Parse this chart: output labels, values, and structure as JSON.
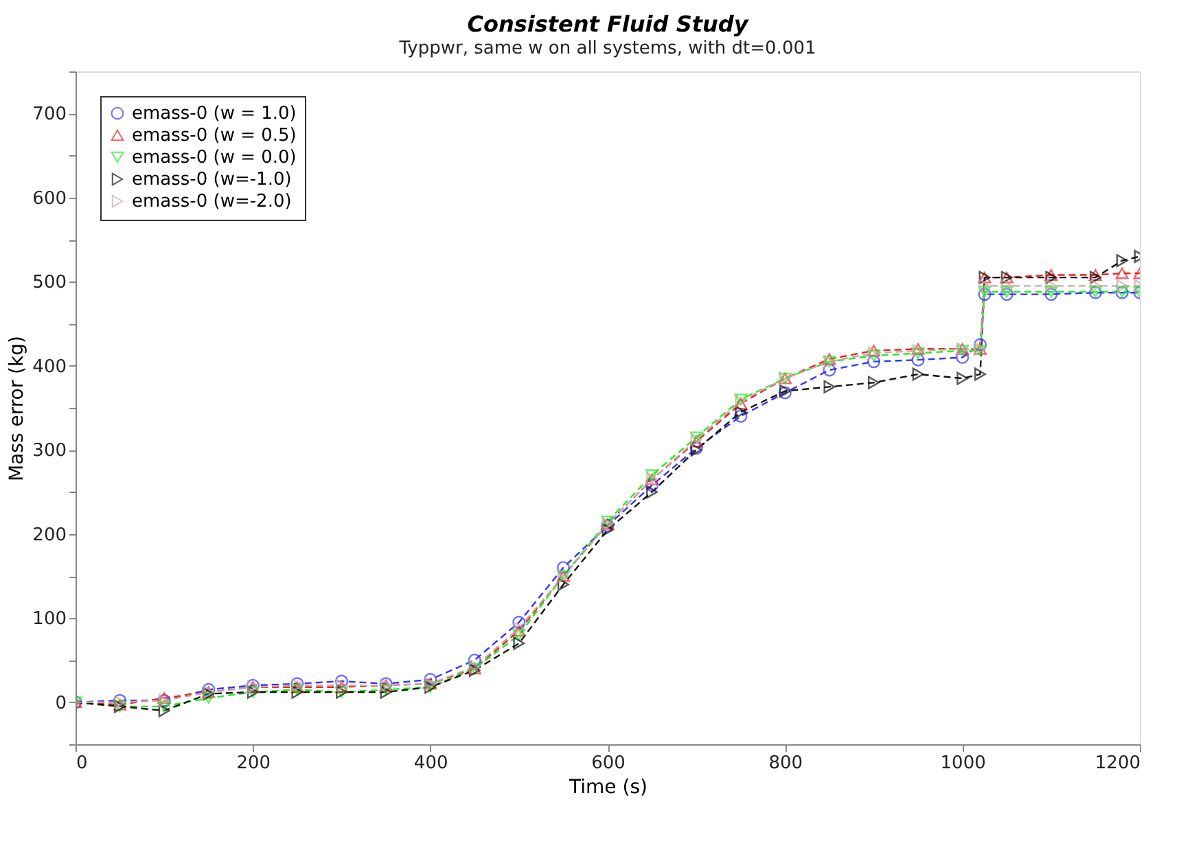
{
  "chart_data": {
    "type": "line",
    "title": "Consistent Fluid Study",
    "subtitle": "Typpwr, same w on all systems, with dt=0.001",
    "xlabel": "Time (s)",
    "ylabel": "Mass error (kg)",
    "x": [
      0,
      50,
      100,
      150,
      200,
      250,
      300,
      350,
      400,
      450,
      500,
      550,
      600,
      650,
      700,
      750,
      800,
      850,
      900,
      950,
      1000,
      1020,
      1025,
      1050,
      1100,
      1150,
      1180,
      1200
    ],
    "series": [
      {
        "name": "emass-0 (w = 1.0)",
        "color": "#3333ff",
        "marker": "circle",
        "values": [
          0,
          2,
          2,
          15,
          20,
          22,
          25,
          22,
          27,
          50,
          95,
          160,
          210,
          258,
          302,
          340,
          368,
          395,
          405,
          407,
          410,
          425,
          485,
          485,
          485,
          487,
          487,
          487
        ]
      },
      {
        "name": "emass-0 (w = 0.5)",
        "color": "#ee2222",
        "marker": "triangle",
        "values": [
          0,
          -3,
          5,
          12,
          18,
          18,
          18,
          20,
          22,
          40,
          85,
          150,
          212,
          265,
          310,
          355,
          385,
          408,
          418,
          420,
          420,
          420,
          505,
          505,
          508,
          508,
          510,
          510
        ]
      },
      {
        "name": "emass-0 (w = 0.0)",
        "color": "#22ee22",
        "marker": "triangle-down",
        "values": [
          0,
          -5,
          -5,
          5,
          12,
          15,
          12,
          15,
          18,
          40,
          80,
          150,
          215,
          270,
          315,
          360,
          385,
          405,
          412,
          415,
          418,
          418,
          488,
          488,
          488,
          488,
          488,
          488
        ]
      },
      {
        "name": "emass-0 (w=-1.0)",
        "color": "#111111",
        "marker": "triangle-right",
        "values": [
          0,
          -5,
          -10,
          10,
          12,
          12,
          12,
          12,
          18,
          38,
          70,
          140,
          205,
          250,
          300,
          345,
          370,
          375,
          380,
          390,
          385,
          390,
          505,
          505,
          505,
          505,
          525,
          530
        ]
      },
      {
        "name": "emass-0 (w=-2.0)",
        "color": "#c8a8a8",
        "marker": "triangle-right",
        "values": [
          0,
          0,
          2,
          12,
          18,
          20,
          20,
          20,
          22,
          42,
          88,
          150,
          212,
          265,
          312,
          358,
          385,
          405,
          415,
          418,
          420,
          420,
          495,
          495,
          495,
          495,
          495,
          495
        ]
      }
    ],
    "xlim": [
      0,
      1200
    ],
    "xticks": [
      0,
      200,
      400,
      600,
      800,
      1000,
      1200
    ],
    "ylim": [
      -50,
      750
    ],
    "yticks": [
      {
        "value": -50,
        "label": null
      },
      0,
      {
        "value": 50,
        "label": null
      },
      100,
      {
        "value": 150,
        "label": null
      },
      200,
      {
        "value": 250,
        "label": null
      },
      300,
      {
        "value": 350,
        "label": null
      },
      400,
      {
        "value": 450,
        "label": null
      },
      500,
      {
        "value": 550,
        "label": null
      },
      600,
      {
        "value": 650,
        "label": null
      },
      700,
      {
        "value": 750,
        "label": null
      }
    ],
    "grid": false,
    "legend": "top left",
    "line_style": "dashed"
  }
}
